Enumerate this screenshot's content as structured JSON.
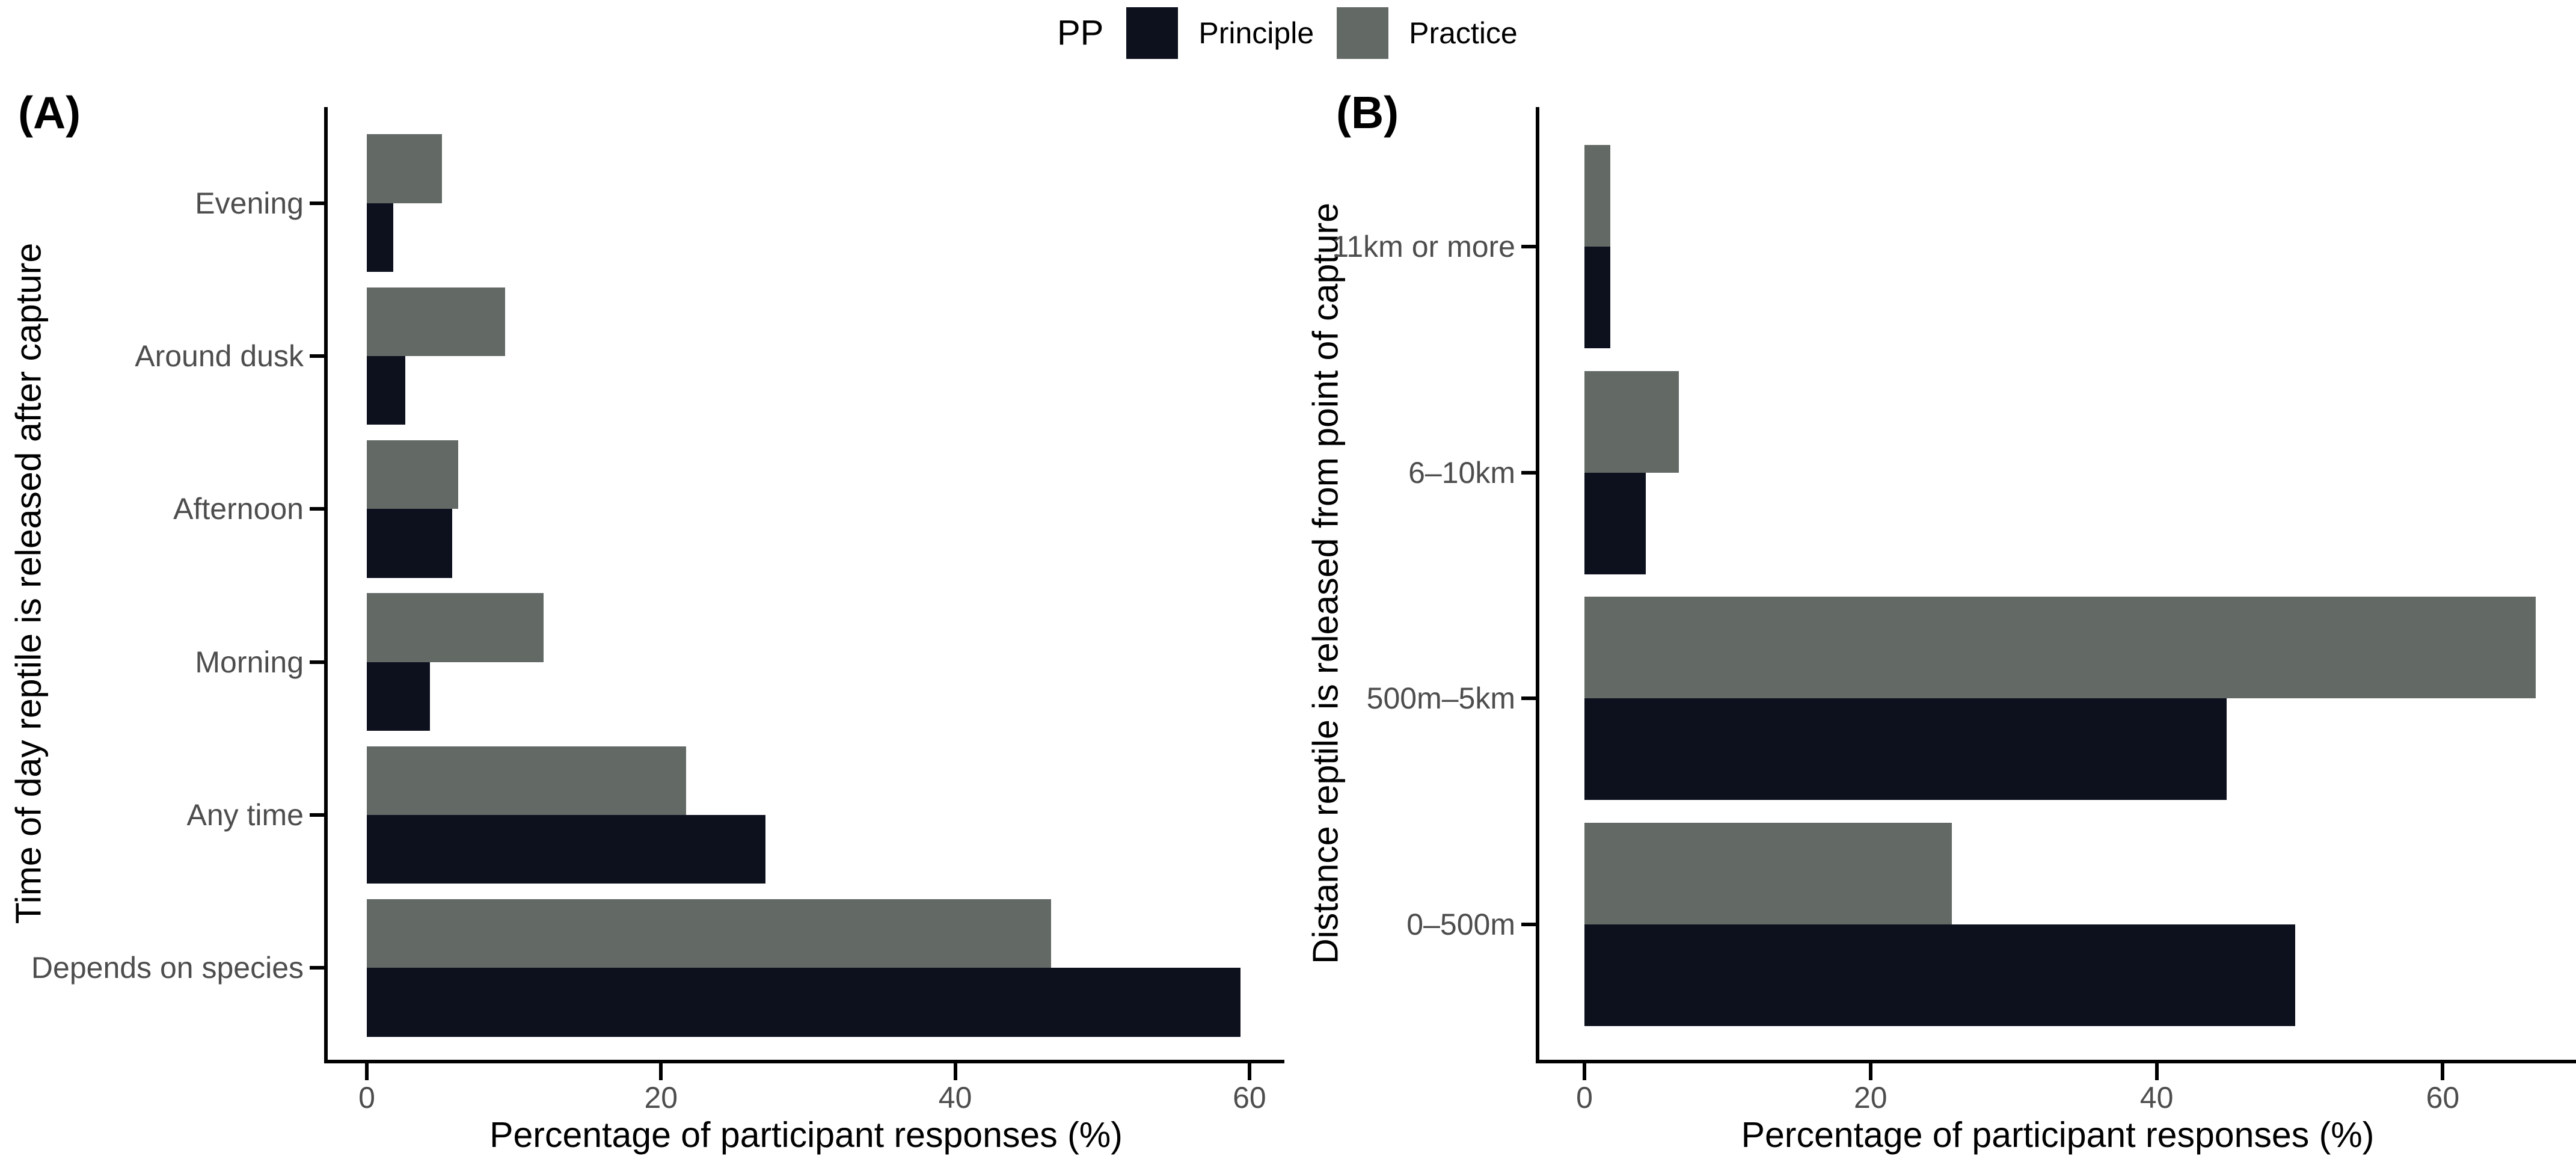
{
  "legend": {
    "title": "PP",
    "items": [
      {
        "label": "Principle",
        "color": "#0d111e"
      },
      {
        "label": "Practice",
        "color": "#636a66"
      }
    ]
  },
  "chart_data": [
    {
      "panel_label": "(A)",
      "type": "bar",
      "orientation": "horizontal",
      "y_title": "Time of day reptile is released after capture",
      "x_title": "Percentage of participant responses (%)",
      "categories": [
        "Evening",
        "Around dusk",
        "Afternoon",
        "Morning",
        "Any time",
        "Depends on species"
      ],
      "series": [
        {
          "name": "Principle",
          "values": [
            1.8,
            2.6,
            5.8,
            4.3,
            27.1,
            59.4
          ]
        },
        {
          "name": "Practice",
          "values": [
            5.1,
            9.4,
            6.2,
            12.0,
            21.7,
            46.5
          ]
        }
      ],
      "x_ticks": [
        0,
        20,
        40,
        60
      ],
      "xlim": [
        0,
        62.4
      ],
      "grid": false,
      "legend_position": "top"
    },
    {
      "panel_label": "(B)",
      "type": "bar",
      "orientation": "horizontal",
      "y_title": "Distance reptile is released from point of capture",
      "x_title": "Percentage of participant responses (%)",
      "categories": [
        "11km or more",
        "6–10km",
        "500m–5km",
        "0–500m"
      ],
      "series": [
        {
          "name": "Principle",
          "values": [
            1.8,
            4.3,
            44.9,
            49.7
          ]
        },
        {
          "name": "Practice",
          "values": [
            1.8,
            6.6,
            66.5,
            25.7
          ]
        }
      ],
      "x_ticks": [
        0,
        20,
        40,
        60
      ],
      "xlim": [
        0,
        69.3
      ],
      "grid": false,
      "legend_position": "top"
    }
  ]
}
